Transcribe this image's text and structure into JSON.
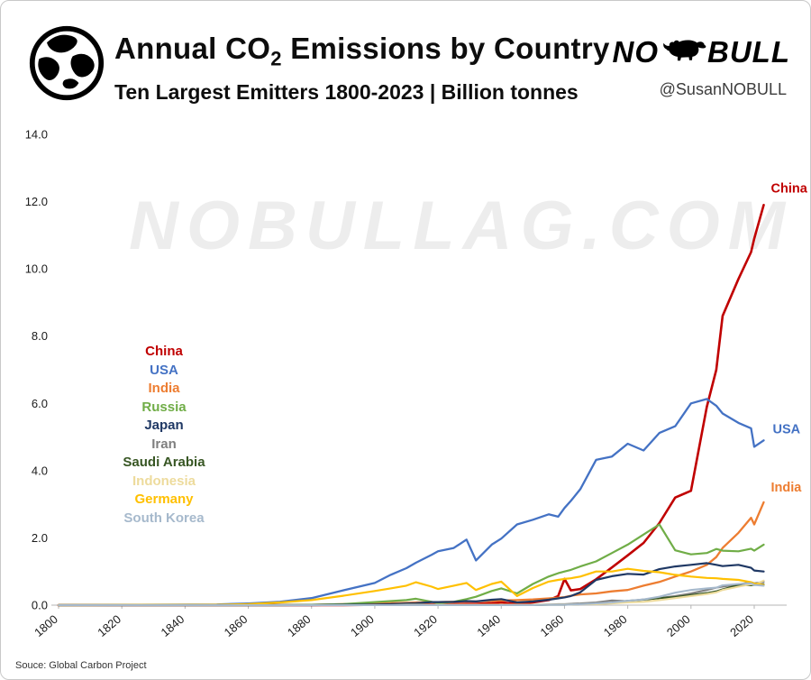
{
  "header": {
    "title_pre": "Annual CO",
    "title_sub": "2",
    "title_post": " Emissions by Country",
    "subtitle": "Ten Largest Emitters 1800-2023 | Billion tonnes",
    "logo": {
      "no": "NO",
      "bull": "BULL",
      "handle": "@SusanNOBULL"
    }
  },
  "watermark": "NOBULLAG.COM",
  "footer": {
    "source": "Souce: Global Carbon Project"
  },
  "chart_data": {
    "type": "line",
    "title": "Annual CO2 Emissions by Country",
    "subtitle": "Ten Largest Emitters 1800-2023 | Billion tonnes",
    "units": "Billion tonnes",
    "ylim": [
      0,
      14
    ],
    "yticks": [
      0,
      2,
      4,
      6,
      8,
      10,
      12,
      14
    ],
    "ytick_labels": [
      "0.0",
      "2.0",
      "4.0",
      "6.0",
      "8.0",
      "10.0",
      "12.0",
      "14.0"
    ],
    "xticks": [
      1800,
      1820,
      1840,
      1860,
      1880,
      1900,
      1920,
      1940,
      1960,
      1980,
      2000,
      2020
    ],
    "x_range": [
      1800,
      2020
    ],
    "grid": false,
    "legend_position": "inside-left",
    "x": [
      1800,
      1850,
      1860,
      1870,
      1880,
      1890,
      1900,
      1905,
      1910,
      1913,
      1918,
      1920,
      1925,
      1929,
      1932,
      1937,
      1940,
      1945,
      1950,
      1955,
      1958,
      1960,
      1962,
      1965,
      1970,
      1975,
      1980,
      1985,
      1990,
      1995,
      2000,
      2005,
      2008,
      2010,
      2015,
      2019,
      2020,
      2023
    ],
    "series": [
      {
        "name": "China",
        "color": "#c00000",
        "width": 2.6,
        "end_label": {
          "dx": 8,
          "dy": -14
        },
        "values": [
          0,
          0,
          0,
          0,
          0,
          0,
          0.01,
          0.02,
          0.03,
          0.03,
          0.02,
          0.02,
          0.03,
          0.04,
          0.04,
          0.06,
          0.08,
          0.04,
          0.08,
          0.15,
          0.27,
          0.78,
          0.44,
          0.48,
          0.77,
          1.12,
          1.48,
          1.85,
          2.44,
          3.2,
          3.4,
          5.9,
          7.0,
          8.6,
          9.7,
          10.5,
          10.9,
          11.9
        ]
      },
      {
        "name": "USA",
        "color": "#4472c4",
        "width": 2.3,
        "end_label": {
          "dx": 10,
          "dy": -8
        },
        "values": [
          0,
          0.02,
          0.05,
          0.1,
          0.21,
          0.44,
          0.66,
          0.9,
          1.1,
          1.26,
          1.5,
          1.6,
          1.7,
          1.95,
          1.33,
          1.8,
          1.98,
          2.4,
          2.54,
          2.7,
          2.63,
          2.89,
          3.1,
          3.45,
          4.32,
          4.42,
          4.8,
          4.6,
          5.12,
          5.32,
          6.0,
          6.13,
          5.93,
          5.7,
          5.42,
          5.26,
          4.71,
          4.9
        ]
      },
      {
        "name": "India",
        "color": "#ed7d31",
        "width": 2.3,
        "end_label": {
          "dx": 8,
          "dy": -12
        },
        "values": [
          0,
          0,
          0,
          0.01,
          0.01,
          0.03,
          0.05,
          0.06,
          0.07,
          0.08,
          0.09,
          0.09,
          0.1,
          0.11,
          0.11,
          0.13,
          0.14,
          0.15,
          0.17,
          0.2,
          0.22,
          0.24,
          0.28,
          0.32,
          0.35,
          0.41,
          0.45,
          0.58,
          0.69,
          0.85,
          1.0,
          1.2,
          1.43,
          1.7,
          2.15,
          2.6,
          2.4,
          3.06
        ]
      },
      {
        "name": "Russia",
        "color": "#70ad47",
        "width": 2.2,
        "values": [
          0,
          0,
          0,
          0,
          0.01,
          0.03,
          0.09,
          0.12,
          0.15,
          0.19,
          0.1,
          0.06,
          0.1,
          0.18,
          0.25,
          0.42,
          0.5,
          0.35,
          0.63,
          0.85,
          0.95,
          1.0,
          1.05,
          1.15,
          1.3,
          1.55,
          1.8,
          2.1,
          2.4,
          1.63,
          1.51,
          1.55,
          1.67,
          1.62,
          1.6,
          1.68,
          1.62,
          1.8
        ]
      },
      {
        "name": "Japan",
        "color": "#1f3864",
        "width": 2.2,
        "values": [
          0,
          0,
          0,
          0,
          0,
          0.01,
          0.02,
          0.03,
          0.05,
          0.06,
          0.09,
          0.09,
          0.1,
          0.12,
          0.11,
          0.16,
          0.18,
          0.08,
          0.11,
          0.16,
          0.2,
          0.23,
          0.27,
          0.38,
          0.75,
          0.86,
          0.93,
          0.91,
          1.07,
          1.15,
          1.2,
          1.25,
          1.2,
          1.16,
          1.2,
          1.11,
          1.03,
          1.0
        ]
      },
      {
        "name": "Iran",
        "color": "#7f7f7f",
        "width": 2.1,
        "values": [
          0,
          0,
          0,
          0,
          0,
          0,
          0,
          0,
          0,
          0,
          0,
          0,
          0,
          0,
          0,
          0,
          0.01,
          0.01,
          0.01,
          0.02,
          0.03,
          0.03,
          0.04,
          0.05,
          0.08,
          0.14,
          0.12,
          0.17,
          0.21,
          0.27,
          0.35,
          0.45,
          0.52,
          0.55,
          0.62,
          0.68,
          0.65,
          0.69
        ]
      },
      {
        "name": "Saudi Arabia",
        "color": "#375623",
        "width": 2.1,
        "values": [
          0,
          0,
          0,
          0,
          0,
          0,
          0,
          0,
          0,
          0,
          0,
          0,
          0,
          0,
          0,
          0,
          0,
          0,
          0,
          0.01,
          0.01,
          0.01,
          0.02,
          0.03,
          0.05,
          0.07,
          0.13,
          0.16,
          0.21,
          0.24,
          0.3,
          0.36,
          0.41,
          0.47,
          0.6,
          0.59,
          0.6,
          0.62
        ]
      },
      {
        "name": "Indonesia",
        "color": "#eddb9c",
        "width": 2.1,
        "values": [
          0,
          0,
          0,
          0,
          0,
          0,
          0,
          0,
          0.01,
          0.01,
          0.01,
          0.01,
          0.01,
          0.01,
          0.01,
          0.01,
          0.01,
          0.01,
          0.01,
          0.02,
          0.02,
          0.02,
          0.02,
          0.03,
          0.03,
          0.05,
          0.08,
          0.1,
          0.15,
          0.21,
          0.27,
          0.33,
          0.38,
          0.45,
          0.55,
          0.62,
          0.6,
          0.73
        ]
      },
      {
        "name": "Germany",
        "color": "#ffc000",
        "width": 2.2,
        "values": [
          0,
          0.01,
          0.03,
          0.08,
          0.15,
          0.28,
          0.42,
          0.5,
          0.58,
          0.68,
          0.55,
          0.48,
          0.58,
          0.66,
          0.45,
          0.63,
          0.7,
          0.27,
          0.51,
          0.7,
          0.75,
          0.78,
          0.8,
          0.85,
          1.0,
          1.0,
          1.08,
          1.02,
          0.98,
          0.9,
          0.85,
          0.81,
          0.8,
          0.78,
          0.75,
          0.68,
          0.64,
          0.6
        ]
      },
      {
        "name": "South Korea",
        "color": "#a6b9cc",
        "width": 2.1,
        "values": [
          0,
          0,
          0,
          0,
          0,
          0,
          0,
          0,
          0,
          0,
          0,
          0,
          0,
          0,
          0,
          0,
          0,
          0,
          0,
          0.01,
          0.01,
          0.01,
          0.02,
          0.03,
          0.05,
          0.08,
          0.13,
          0.17,
          0.25,
          0.37,
          0.45,
          0.5,
          0.52,
          0.59,
          0.63,
          0.65,
          0.6,
          0.58
        ]
      }
    ]
  }
}
